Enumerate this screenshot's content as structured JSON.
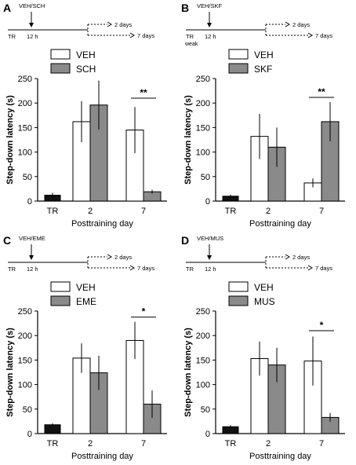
{
  "figure": {
    "ylabel": "Step-down latency (s)",
    "xlabel": "Posttraining day",
    "timeline": {
      "treat_time": "12 h",
      "train_label": "TR",
      "day2_label": "2 days",
      "day7_label": "7 days"
    },
    "colors": {
      "veh": "#ffffff",
      "drug": "#8a8a8a",
      "tr": "#111111",
      "stroke": "#000000"
    }
  },
  "chart_data": [
    {
      "panel": "A",
      "type": "bar",
      "drug_label": "VEH/SCH",
      "train_label": "TR",
      "train_sublabel": "",
      "categories": [
        "TR",
        "2",
        "7"
      ],
      "legend": [
        "VEH",
        "SCH"
      ],
      "tr": {
        "value": 12,
        "err": 5
      },
      "series": [
        {
          "name": "VEH",
          "values": [
            null,
            162,
            145
          ],
          "err": [
            null,
            42,
            47
          ]
        },
        {
          "name": "SCH",
          "values": [
            null,
            196,
            19
          ],
          "err": [
            null,
            50,
            4
          ]
        }
      ],
      "sig": {
        "category": "7",
        "label": "**"
      },
      "ylim": [
        0,
        250
      ],
      "yticks": [
        0,
        50,
        100,
        150,
        200,
        250
      ]
    },
    {
      "panel": "B",
      "type": "bar",
      "drug_label": "VEH/SKF",
      "train_label": "TR",
      "train_sublabel": "weak",
      "categories": [
        "TR",
        "2",
        "7"
      ],
      "legend": [
        "VEH",
        "SKF"
      ],
      "tr": {
        "value": 10,
        "err": 3
      },
      "series": [
        {
          "name": "VEH",
          "values": [
            null,
            132,
            37
          ],
          "err": [
            null,
            46,
            9
          ]
        },
        {
          "name": "SKF",
          "values": [
            null,
            110,
            162
          ],
          "err": [
            null,
            40,
            40
          ]
        }
      ],
      "sig": {
        "category": "7",
        "label": "**"
      },
      "ylim": [
        0,
        250
      ],
      "yticks": [
        0,
        50,
        100,
        150,
        200,
        250
      ]
    },
    {
      "panel": "C",
      "type": "bar",
      "drug_label": "VEH/EME",
      "train_label": "TR",
      "train_sublabel": "",
      "categories": [
        "TR",
        "2",
        "7"
      ],
      "legend": [
        "VEH",
        "EME"
      ],
      "tr": {
        "value": 18,
        "err": 3
      },
      "series": [
        {
          "name": "VEH",
          "values": [
            null,
            154,
            190
          ],
          "err": [
            null,
            30,
            38
          ]
        },
        {
          "name": "EME",
          "values": [
            null,
            124,
            60
          ],
          "err": [
            null,
            35,
            28
          ]
        }
      ],
      "sig": {
        "category": "7",
        "label": "*"
      },
      "ylim": [
        0,
        250
      ],
      "yticks": [
        0,
        50,
        100,
        150,
        200,
        250
      ]
    },
    {
      "panel": "D",
      "type": "bar",
      "drug_label": "VEH/MUS",
      "train_label": "TR",
      "train_sublabel": "",
      "categories": [
        "TR",
        "2",
        "7"
      ],
      "legend": [
        "VEH",
        "MUS"
      ],
      "tr": {
        "value": 14,
        "err": 3
      },
      "series": [
        {
          "name": "VEH",
          "values": [
            null,
            153,
            148
          ],
          "err": [
            null,
            35,
            50
          ]
        },
        {
          "name": "MUS",
          "values": [
            null,
            140,
            33
          ],
          "err": [
            null,
            35,
            9
          ]
        }
      ],
      "sig": {
        "category": "7",
        "label": "*"
      },
      "ylim": [
        0,
        250
      ],
      "yticks": [
        0,
        50,
        100,
        150,
        200,
        250
      ]
    }
  ]
}
